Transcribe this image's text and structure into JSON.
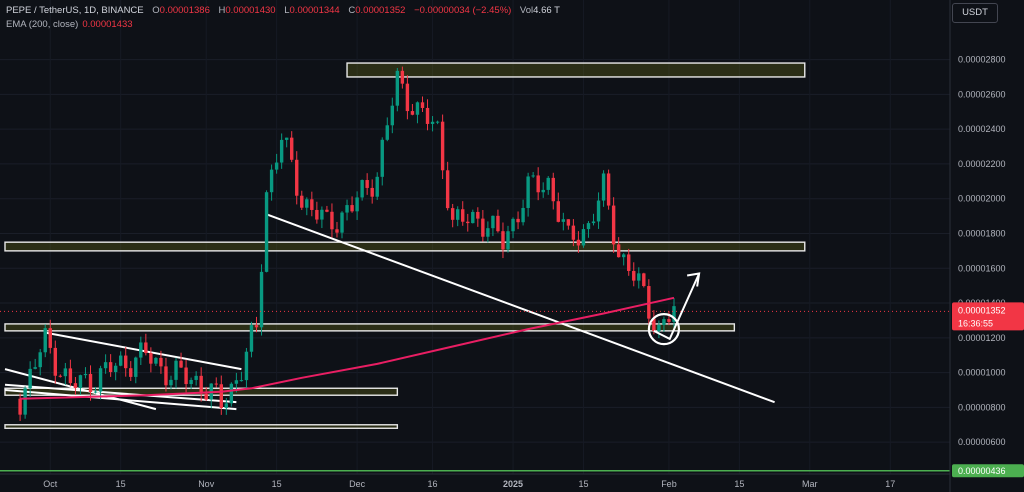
{
  "header": {
    "symbol_line": "PEPE / TetherUS, 1D, BINANCE",
    "open_label": "O",
    "open": "0.00001386",
    "high_label": "H",
    "high": "0.00001430",
    "low_label": "L",
    "low": "0.00001344",
    "close_label": "C",
    "close": "0.00001352",
    "change": "−0.00000034 (−2.45%)",
    "volume_label": "Vol",
    "volume": "4.66 T",
    "ema_label": "EMA (200, close)",
    "ema_value": "0.00001433"
  },
  "currency": "USDT",
  "price_tag": {
    "value": "0.00001352",
    "countdown": "16:36:55",
    "color": "#f23645"
  },
  "support_tag": {
    "value": "0.00000436",
    "color": "#4caf50"
  },
  "chart_data": {
    "type": "line",
    "instrument": "PEPE / TetherUS",
    "interval": "1D",
    "exchange": "BINANCE",
    "y_axis": {
      "ticks": [
        "0.00002800",
        "0.00002600",
        "0.00002400",
        "0.00002200",
        "0.00002000",
        "0.00001800",
        "0.00001600",
        "0.00001400",
        "0.00001200",
        "0.00001000",
        "0.00000800",
        "0.00000600"
      ],
      "range": [
        4.4e-06,
        2.97e-05
      ]
    },
    "x_axis": {
      "ticks": [
        "Oct",
        "15",
        "Nov",
        "15",
        "Dec",
        "16",
        "2025",
        "15",
        "Feb",
        "15",
        "Mar",
        "17"
      ]
    },
    "close_series": [
      {
        "date": "2024-09-25",
        "close": 8.5e-06
      },
      {
        "date": "2024-09-30",
        "close": 1.18e-05
      },
      {
        "date": "2024-10-05",
        "close": 9.2e-06
      },
      {
        "date": "2024-10-10",
        "close": 9.7e-06
      },
      {
        "date": "2024-10-15",
        "close": 1.05e-05
      },
      {
        "date": "2024-10-20",
        "close": 1.1e-05
      },
      {
        "date": "2024-10-25",
        "close": 9.9e-06
      },
      {
        "date": "2024-10-30",
        "close": 9.6e-06
      },
      {
        "date": "2024-11-04",
        "close": 8.2e-06
      },
      {
        "date": "2024-11-08",
        "close": 1.02e-05
      },
      {
        "date": "2024-11-11",
        "close": 1.25e-05
      },
      {
        "date": "2024-11-13",
        "close": 2.05e-05
      },
      {
        "date": "2024-11-16",
        "close": 2.35e-05
      },
      {
        "date": "2024-11-20",
        "close": 2e-05
      },
      {
        "date": "2024-11-25",
        "close": 1.85e-05
      },
      {
        "date": "2024-11-30",
        "close": 1.95e-05
      },
      {
        "date": "2024-12-05",
        "close": 2.15e-05
      },
      {
        "date": "2024-12-09",
        "close": 2.68e-05
      },
      {
        "date": "2024-12-13",
        "close": 2.5e-05
      },
      {
        "date": "2024-12-17",
        "close": 2.4e-05
      },
      {
        "date": "2024-12-20",
        "close": 1.85e-05
      },
      {
        "date": "2024-12-25",
        "close": 1.9e-05
      },
      {
        "date": "2024-12-30",
        "close": 1.75e-05
      },
      {
        "date": "2025-01-04",
        "close": 2.05e-05
      },
      {
        "date": "2025-01-08",
        "close": 2.1e-05
      },
      {
        "date": "2025-01-12",
        "close": 1.75e-05
      },
      {
        "date": "2025-01-16",
        "close": 1.85e-05
      },
      {
        "date": "2025-01-19",
        "close": 2.05e-05
      },
      {
        "date": "2025-01-22",
        "close": 1.7e-05
      },
      {
        "date": "2025-01-26",
        "close": 1.5e-05
      },
      {
        "date": "2025-01-30",
        "close": 1.25e-05
      },
      {
        "date": "2025-02-02",
        "close": 1.35e-05
      }
    ],
    "ema_200": [
      {
        "date": "2024-09-25",
        "value": 8.5e-06
      },
      {
        "date": "2024-10-20",
        "value": 8.7e-06
      },
      {
        "date": "2024-11-04",
        "value": 8.9e-06
      },
      {
        "date": "2024-11-10",
        "value": 9.1e-06
      },
      {
        "date": "2024-11-20",
        "value": 9.7e-06
      },
      {
        "date": "2024-12-05",
        "value": 1.05e-05
      },
      {
        "date": "2024-12-20",
        "value": 1.15e-05
      },
      {
        "date": "2025-01-04",
        "value": 1.25e-05
      },
      {
        "date": "2025-01-19",
        "value": 1.34e-05
      },
      {
        "date": "2025-02-02",
        "value": 1.43e-05
      }
    ],
    "last_close": 1.352e-05,
    "ema_last": 1.433e-05,
    "support_level": 4.36e-06,
    "annotations": [
      {
        "kind": "zone",
        "from": "2024-11-29",
        "to": "2025-02-28",
        "low": 2.7e-05,
        "high": 2.78e-05
      },
      {
        "kind": "zone",
        "from": "2024-09-22",
        "to": "2025-02-28",
        "low": 1.7e-05,
        "high": 1.75e-05
      },
      {
        "kind": "zone",
        "from": "2024-09-22",
        "to": "2025-02-14",
        "low": 1.24e-05,
        "high": 1.28e-05
      },
      {
        "kind": "zone",
        "from": "2024-09-22",
        "to": "2024-12-09",
        "low": 8.7e-06,
        "high": 9.1e-06
      },
      {
        "kind": "zone",
        "from": "2024-09-22",
        "to": "2024-12-09",
        "low": 6.8e-06,
        "high": 7e-06
      },
      {
        "kind": "trendline",
        "from": {
          "date": "2024-11-13",
          "price": 1.91e-05
        },
        "to": {
          "date": "2025-02-22",
          "price": 8.3e-06
        }
      },
      {
        "kind": "trendline",
        "from": {
          "date": "2024-09-30",
          "price": 1.23e-05
        },
        "to": {
          "date": "2024-11-08",
          "price": 1.02e-05
        }
      },
      {
        "kind": "trendline",
        "from": {
          "date": "2024-09-22",
          "price": 1.02e-05
        },
        "to": {
          "date": "2024-10-22",
          "price": 7.9e-06
        }
      },
      {
        "kind": "trendline",
        "from": {
          "date": "2024-09-22",
          "price": 9e-06
        },
        "to": {
          "date": "2024-11-07",
          "price": 7.9e-06
        }
      },
      {
        "kind": "trendline",
        "from": {
          "date": "2024-09-22",
          "price": 9.3e-06
        },
        "to": {
          "date": "2024-11-07",
          "price": 8.3e-06
        }
      },
      {
        "kind": "circle",
        "date": "2025-01-31",
        "price": 1.25e-05
      },
      {
        "kind": "arrow",
        "from": {
          "date": "2025-01-29",
          "price": 1.24e-05
        },
        "to": {
          "date": "2025-02-07",
          "price": 1.57e-05
        }
      }
    ]
  }
}
